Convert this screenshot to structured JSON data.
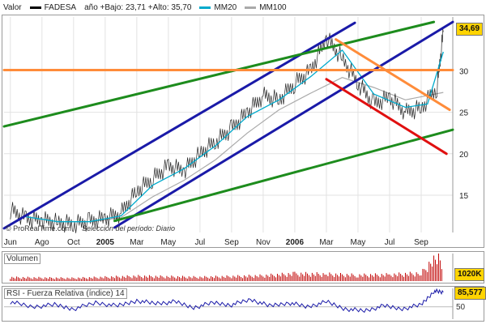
{
  "header": {
    "label": "Valor",
    "ticker": "FADESA",
    "range_text": "año +Bajo: 23,71 +Alto: 35,70",
    "ma20_label": "MM20",
    "ma100_label": "MM100"
  },
  "footer": {
    "credit": "© ProRealTime.com",
    "period_text": "Selección del período: Diario"
  },
  "colors": {
    "price": "#000000",
    "ma20": "#00aacc",
    "ma100": "#aaaaaa",
    "channel_blue": "#1a1aa8",
    "channel_green": "#1d8c1d",
    "resistance_orange": "#ff8c3a",
    "support_red": "#e01010",
    "value_box": "#ffd400",
    "volume": "#c00000",
    "rsi": "#1a1aa8"
  },
  "volume_panel": {
    "title": "Volumen",
    "value_label": "1020K"
  },
  "rsi_panel": {
    "title": "RSI - Fuerza Relativa (índice) 14",
    "value_label": "85,577",
    "tick_label": "50"
  },
  "chart_data": {
    "type": "line",
    "title": "FADESA",
    "x_ticks": [
      "Jun",
      "Ago",
      "Oct",
      "2005",
      "Mar",
      "May",
      "Jul",
      "Sep",
      "Nov",
      "2006",
      "Mar",
      "May",
      "Jul",
      "Sep"
    ],
    "y_ticks": [
      15,
      20,
      25,
      30
    ],
    "ylim": [
      10.5,
      36.5
    ],
    "last_value_label": "34,69",
    "grid": true,
    "legend": "top-left",
    "price_points": [
      {
        "t": 0.0,
        "v": 13.2
      },
      {
        "t": 0.5,
        "v": 12.2
      },
      {
        "t": 1.0,
        "v": 12.0
      },
      {
        "t": 1.5,
        "v": 11.7
      },
      {
        "t": 2.0,
        "v": 11.5
      },
      {
        "t": 2.5,
        "v": 11.8
      },
      {
        "t": 3.0,
        "v": 12.2
      },
      {
        "t": 3.5,
        "v": 12.8
      },
      {
        "t": 4.0,
        "v": 15.5
      },
      {
        "t": 4.5,
        "v": 17.0
      },
      {
        "t": 5.0,
        "v": 18.5
      },
      {
        "t": 5.5,
        "v": 18.0
      },
      {
        "t": 6.0,
        "v": 20.0
      },
      {
        "t": 6.5,
        "v": 21.5
      },
      {
        "t": 7.0,
        "v": 23.0
      },
      {
        "t": 7.5,
        "v": 25.0
      },
      {
        "t": 8.0,
        "v": 27.0
      },
      {
        "t": 8.5,
        "v": 26.5
      },
      {
        "t": 9.0,
        "v": 28.5
      },
      {
        "t": 9.5,
        "v": 30.0
      },
      {
        "t": 10.0,
        "v": 34.0
      },
      {
        "t": 10.5,
        "v": 31.5
      },
      {
        "t": 11.0,
        "v": 28.5
      },
      {
        "t": 11.5,
        "v": 26.0
      },
      {
        "t": 12.0,
        "v": 26.8
      },
      {
        "t": 12.5,
        "v": 25.0
      },
      {
        "t": 13.0,
        "v": 25.5
      },
      {
        "t": 13.5,
        "v": 28.0
      },
      {
        "t": 13.7,
        "v": 34.69
      }
    ],
    "ma20_points": [
      {
        "t": 0.5,
        "v": 12.4
      },
      {
        "t": 1.5,
        "v": 11.8
      },
      {
        "t": 2.5,
        "v": 11.8
      },
      {
        "t": 3.5,
        "v": 12.5
      },
      {
        "t": 4.5,
        "v": 16.2
      },
      {
        "t": 5.5,
        "v": 18.2
      },
      {
        "t": 6.5,
        "v": 21.0
      },
      {
        "t": 7.5,
        "v": 24.5
      },
      {
        "t": 8.5,
        "v": 26.5
      },
      {
        "t": 9.5,
        "v": 29.3
      },
      {
        "t": 10.5,
        "v": 32.5
      },
      {
        "t": 11.5,
        "v": 27.2
      },
      {
        "t": 12.5,
        "v": 25.6
      },
      {
        "t": 13.2,
        "v": 26.0
      },
      {
        "t": 13.7,
        "v": 32.3
      }
    ],
    "ma100_points": [
      {
        "t": 2.6,
        "v": 11.8
      },
      {
        "t": 3.5,
        "v": 12.3
      },
      {
        "t": 4.5,
        "v": 14.8
      },
      {
        "t": 5.5,
        "v": 16.8
      },
      {
        "t": 6.5,
        "v": 19.3
      },
      {
        "t": 7.5,
        "v": 22.5
      },
      {
        "t": 8.5,
        "v": 25.3
      },
      {
        "t": 9.5,
        "v": 27.3
      },
      {
        "t": 10.5,
        "v": 29.2
      },
      {
        "t": 11.5,
        "v": 28.0
      },
      {
        "t": 12.5,
        "v": 26.5
      },
      {
        "t": 13.7,
        "v": 27.4
      }
    ],
    "trend_lines": [
      {
        "color": "channel_blue",
        "from": {
          "t": -0.2,
          "v": 11.0
        },
        "to": {
          "t": 10.9,
          "v": 35.8
        }
      },
      {
        "color": "channel_blue",
        "from": {
          "t": 3.3,
          "v": 11.1
        },
        "to": {
          "t": 14.0,
          "v": 35.9
        }
      },
      {
        "color": "channel_green",
        "from": {
          "t": -0.2,
          "v": 23.3
        },
        "to": {
          "t": 13.4,
          "v": 35.9
        }
      },
      {
        "color": "channel_green",
        "from": {
          "t": 3.3,
          "v": 11.9
        },
        "to": {
          "t": 14.0,
          "v": 22.9
        }
      },
      {
        "color": "resistance_orange",
        "from": {
          "t": -0.2,
          "v": 30.1
        },
        "to": {
          "t": 14.0,
          "v": 30.1
        }
      },
      {
        "color": "resistance_orange",
        "from": {
          "t": 10.3,
          "v": 33.8
        },
        "to": {
          "t": 13.9,
          "v": 25.3
        }
      },
      {
        "color": "support_red",
        "from": {
          "t": 10.0,
          "v": 29.0
        },
        "to": {
          "t": 13.8,
          "v": 20.0
        }
      }
    ],
    "volume": {
      "max": 1020,
      "points": [
        {
          "t": 0.0,
          "v": 150
        },
        {
          "t": 2.0,
          "v": 120
        },
        {
          "t": 4.0,
          "v": 200
        },
        {
          "t": 6.0,
          "v": 160
        },
        {
          "t": 8.0,
          "v": 220
        },
        {
          "t": 9.0,
          "v": 300
        },
        {
          "t": 10.0,
          "v": 280
        },
        {
          "t": 11.0,
          "v": 240
        },
        {
          "t": 12.0,
          "v": 260
        },
        {
          "t": 13.0,
          "v": 320
        },
        {
          "t": 13.4,
          "v": 900
        },
        {
          "t": 13.6,
          "v": 1020
        },
        {
          "t": 13.7,
          "v": 600
        }
      ]
    },
    "rsi": {
      "ylim": [
        20,
        95
      ],
      "points": [
        {
          "t": 0.0,
          "v": 62
        },
        {
          "t": 0.7,
          "v": 50
        },
        {
          "t": 1.4,
          "v": 55
        },
        {
          "t": 2.0,
          "v": 45
        },
        {
          "t": 2.7,
          "v": 60
        },
        {
          "t": 3.4,
          "v": 52
        },
        {
          "t": 4.0,
          "v": 65
        },
        {
          "t": 4.6,
          "v": 58
        },
        {
          "t": 5.2,
          "v": 62
        },
        {
          "t": 5.8,
          "v": 48
        },
        {
          "t": 6.4,
          "v": 60
        },
        {
          "t": 7.0,
          "v": 55
        },
        {
          "t": 7.6,
          "v": 68
        },
        {
          "t": 8.2,
          "v": 52
        },
        {
          "t": 8.8,
          "v": 60
        },
        {
          "t": 9.4,
          "v": 50
        },
        {
          "t": 10.0,
          "v": 62
        },
        {
          "t": 10.6,
          "v": 45
        },
        {
          "t": 11.2,
          "v": 40
        },
        {
          "t": 11.8,
          "v": 52
        },
        {
          "t": 12.4,
          "v": 45
        },
        {
          "t": 13.0,
          "v": 55
        },
        {
          "t": 13.4,
          "v": 88
        },
        {
          "t": 13.7,
          "v": 85.577
        }
      ]
    }
  }
}
